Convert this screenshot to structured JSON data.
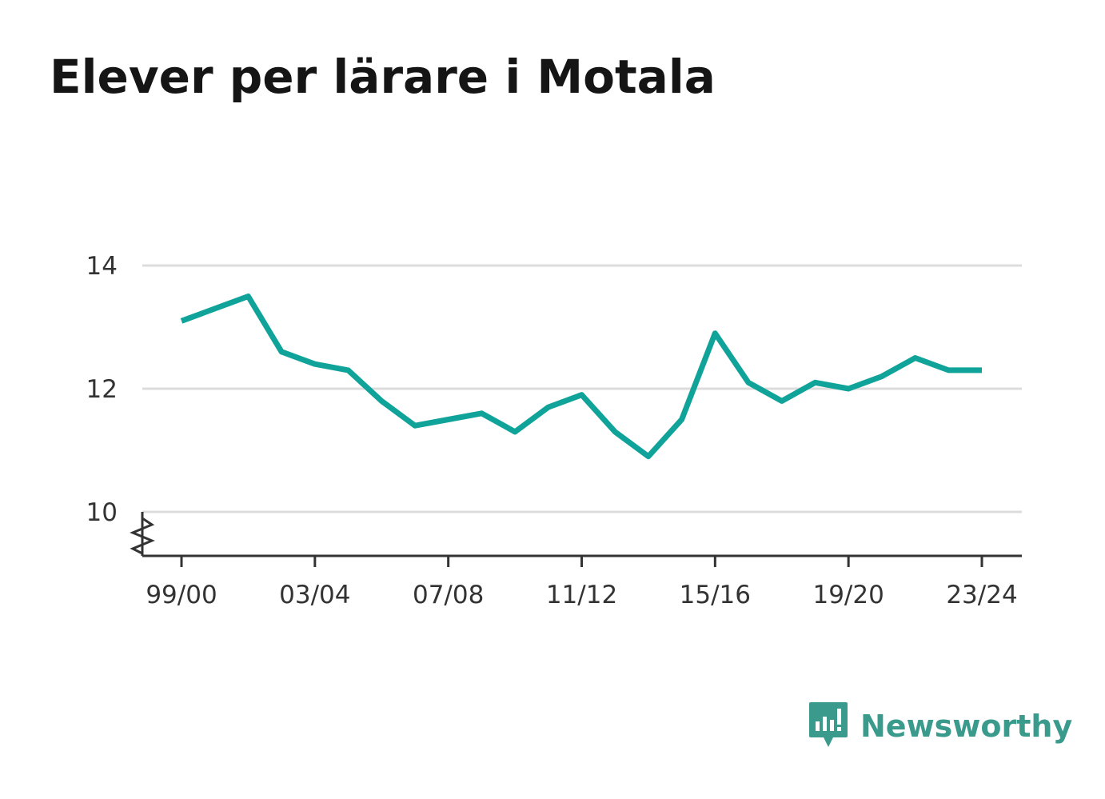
{
  "title": "Elever per lärare i Motala",
  "brand": {
    "name": "Newsworthy",
    "icon": "newsworthy-logo-icon",
    "color": "#3a9a8c"
  },
  "chart_data": {
    "type": "line",
    "title": "Elever per lärare i Motala",
    "xlabel": "",
    "ylabel": "",
    "x": [
      "99/00",
      "00/01",
      "01/02",
      "02/03",
      "03/04",
      "04/05",
      "05/06",
      "06/07",
      "07/08",
      "08/09",
      "09/10",
      "10/11",
      "11/12",
      "12/13",
      "13/14",
      "14/15",
      "15/16",
      "16/17",
      "17/18",
      "18/19",
      "19/20",
      "20/21",
      "21/22",
      "22/23",
      "23/24"
    ],
    "tick_labels": [
      "99/00",
      "03/04",
      "07/08",
      "11/12",
      "15/16",
      "19/20",
      "23/24"
    ],
    "y_ticks": [
      10,
      12,
      14
    ],
    "ylim": [
      9.3,
      14
    ],
    "axis_break": true,
    "grid": true,
    "series": [
      {
        "color": "#0fa39a",
        "values": [
          13.1,
          13.3,
          13.5,
          12.6,
          12.4,
          12.3,
          11.8,
          11.4,
          11.5,
          11.6,
          11.3,
          11.7,
          11.9,
          11.3,
          10.9,
          11.5,
          12.9,
          12.1,
          11.8,
          12.1,
          12.0,
          12.2,
          12.5,
          12.3,
          12.3
        ]
      }
    ]
  }
}
